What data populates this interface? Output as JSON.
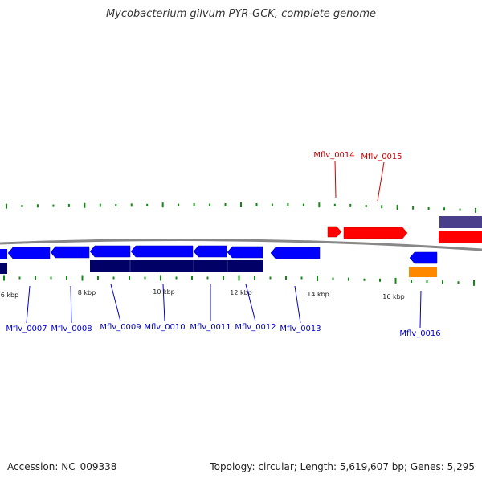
{
  "header": {
    "title": "Mycobacterium gilvum PYR-GCK, complete genome"
  },
  "footer": {
    "accession": "Accession: NC_009338",
    "topology": "Topology: circular; Length: 5,619,607 bp; Genes: 5,295"
  },
  "colors": {
    "forward_gene": "#ff0000",
    "reverse_gene": "#0000ff",
    "forward_label": "#cc0000",
    "reverse_label": "#0000cc",
    "cds_band_reverse": "#000066",
    "cds_band_forward": "#4a3f8a",
    "orange_feature": "#ff8800",
    "backbone": "#888888",
    "gc_tick": "#118811"
  },
  "scale": {
    "labels": [
      "6 kbp",
      "8 kbp",
      "10 kbp",
      "12 kbp",
      "14 kbp",
      "16 kbp"
    ]
  },
  "genes": [
    {
      "name": "Mflv_0007",
      "strand": "reverse"
    },
    {
      "name": "Mflv_0008",
      "strand": "reverse"
    },
    {
      "name": "Mflv_0009",
      "strand": "reverse"
    },
    {
      "name": "Mflv_0010",
      "strand": "reverse"
    },
    {
      "name": "Mflv_0011",
      "strand": "reverse"
    },
    {
      "name": "Mflv_0012",
      "strand": "reverse"
    },
    {
      "name": "Mflv_0013",
      "strand": "reverse"
    },
    {
      "name": "Mflv_0014",
      "strand": "forward"
    },
    {
      "name": "Mflv_0015",
      "strand": "forward"
    },
    {
      "name": "Mflv_0016",
      "strand": "reverse"
    }
  ]
}
